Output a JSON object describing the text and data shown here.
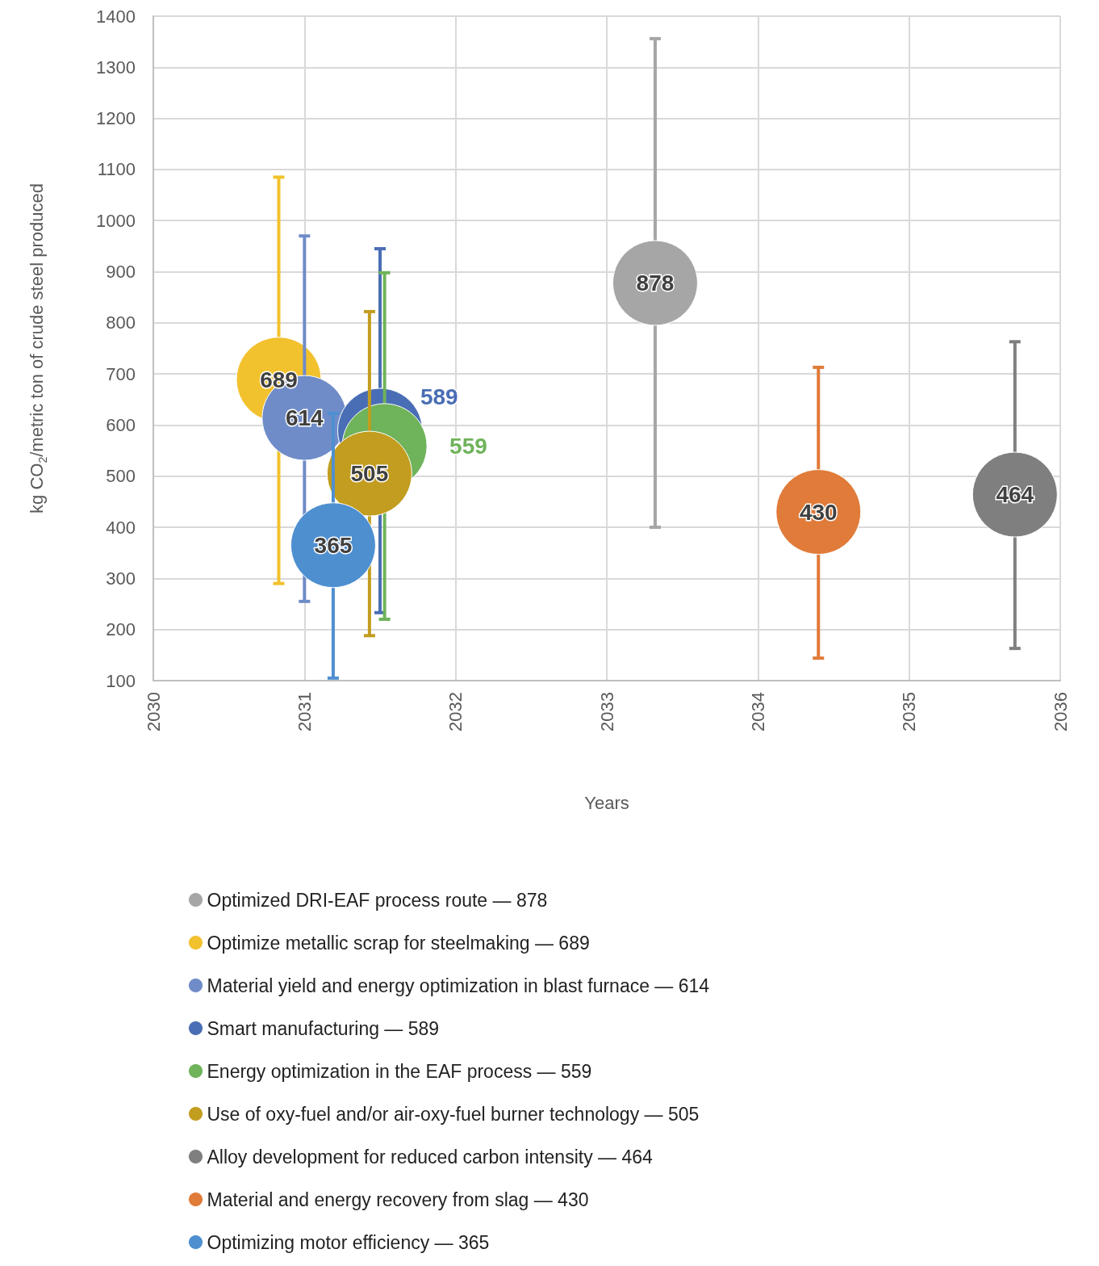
{
  "chart_data": {
    "type": "bubble",
    "xlabel": "Years",
    "ylabel": "kg CO$_{2}$/metric ton of crude steel produced",
    "xlim": [
      2030,
      2036
    ],
    "xticks": [
      2030,
      2031,
      2032,
      2033,
      2034,
      2035,
      2036
    ],
    "ylim": [
      100,
      1400
    ],
    "yticks": [
      100,
      200,
      300,
      400,
      500,
      600,
      700,
      800,
      900,
      1000,
      1100,
      1200,
      1300,
      1400
    ],
    "grid": true,
    "legend": "bottom",
    "data_labels": true,
    "series": [
      {
        "name": "Optimized DRI-EAF process route — 878",
        "color": "#a6a6a6",
        "x": [
          2033.32
        ],
        "values": [
          878
        ],
        "sizes": [
          1
        ],
        "errors": [
          [
            400,
            1356
          ]
        ]
      },
      {
        "name": "Optimize metallic scrap for steelmaking — 689",
        "color": "#f2c12e",
        "x": [
          2030.83
        ],
        "values": [
          689
        ],
        "sizes": [
          1
        ],
        "errors": [
          [
            290,
            1085
          ]
        ]
      },
      {
        "name": "Material yield and energy optimization in blast furnace — 614",
        "color": "#6f8cc8",
        "x": [
          2031.0
        ],
        "values": [
          614
        ],
        "sizes": [
          1
        ],
        "errors": [
          [
            255,
            970
          ]
        ]
      },
      {
        "name": "Smart manufacturing — 589",
        "color": "#4a6eb5",
        "x": [
          2031.5
        ],
        "values": [
          589
        ],
        "sizes": [
          1
        ],
        "errors": [
          [
            233,
            945
          ]
        ]
      },
      {
        "name": "Energy optimization in the EAF process — 559",
        "color": "#6fb35a",
        "x": [
          2031.53
        ],
        "values": [
          559
        ],
        "sizes": [
          1
        ],
        "errors": [
          [
            220,
            898
          ]
        ]
      },
      {
        "name": "Use of oxy-fuel and/or air-oxy-fuel burner technology — 505",
        "color": "#c29d1f",
        "x": [
          2031.43
        ],
        "values": [
          505
        ],
        "sizes": [
          1
        ],
        "errors": [
          [
            188,
            822
          ]
        ]
      },
      {
        "name": "Alloy development for reduced carbon intensity — 464",
        "color": "#7f7f7f",
        "x": [
          2035.7
        ],
        "values": [
          464
        ],
        "sizes": [
          1
        ],
        "errors": [
          [
            163,
            763
          ]
        ]
      },
      {
        "name": "Material and energy recovery from slag — 430",
        "color": "#e07b39",
        "x": [
          2034.4
        ],
        "values": [
          430
        ],
        "sizes": [
          1
        ],
        "errors": [
          [
            144,
            713
          ]
        ]
      },
      {
        "name": "Optimizing motor efficiency — 365",
        "color": "#4e8fd0",
        "x": [
          2031.19
        ],
        "values": [
          365
        ],
        "sizes": [
          1
        ],
        "errors": [
          [
            105,
            623
          ]
        ]
      }
    ]
  }
}
